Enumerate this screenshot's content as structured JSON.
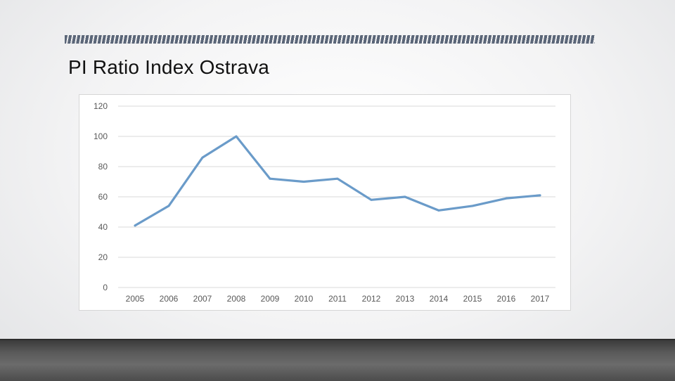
{
  "slide": {
    "title": "PI Ratio Index Ostrava"
  },
  "colors": {
    "line": "#6a9bc9",
    "grid": "#d9d9d9",
    "deco": "#5b6678"
  },
  "chart_data": {
    "type": "line",
    "x": [
      "2005",
      "2006",
      "2007",
      "2008",
      "2009",
      "2010",
      "2011",
      "2012",
      "2013",
      "2014",
      "2015",
      "2016",
      "2017"
    ],
    "series": [
      {
        "values": [
          41,
          54,
          86,
          100,
          72,
          70,
          72,
          58,
          60,
          51,
          54,
          59,
          61
        ]
      }
    ],
    "ylim": [
      0,
      120
    ],
    "yticks": [
      0,
      20,
      40,
      60,
      80,
      100,
      120
    ],
    "grid": true,
    "legend": "none"
  }
}
